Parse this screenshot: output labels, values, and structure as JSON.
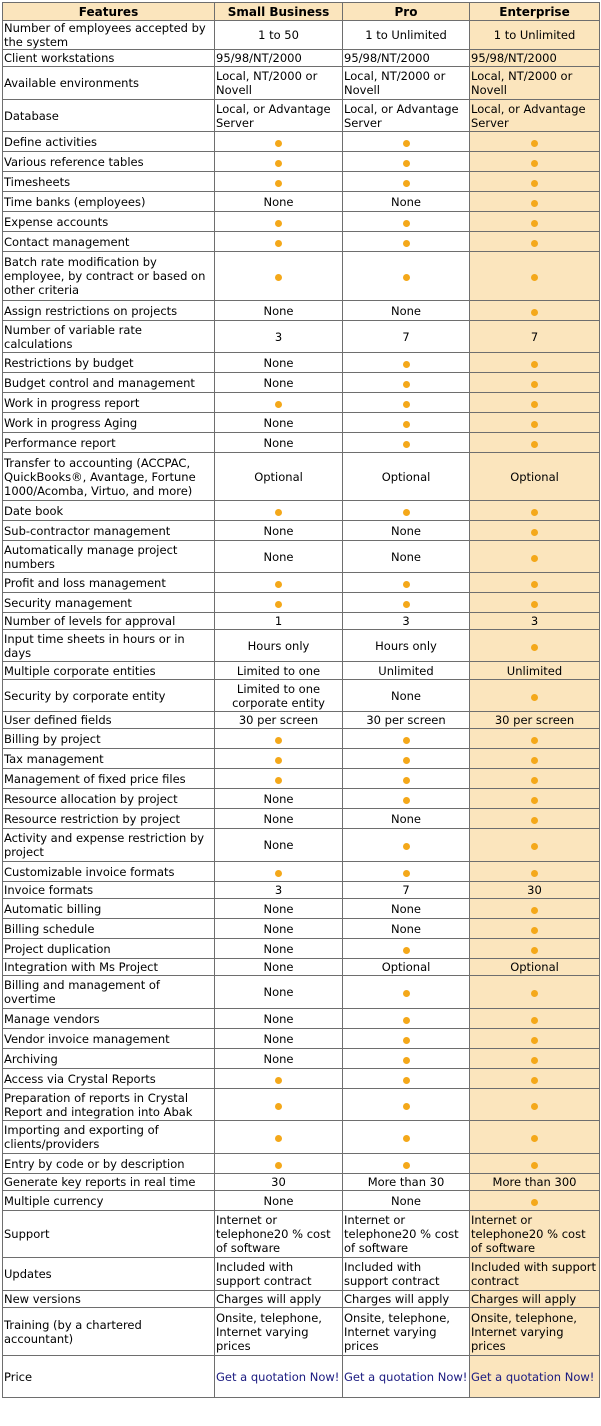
{
  "headers": [
    "Features",
    "Small Business",
    "Pro",
    "Enterprise"
  ],
  "rows": [
    {
      "h": 29,
      "feature": "Number of employees accepted by the system",
      "cells": [
        {
          "t": "text",
          "v": "1 to 50",
          "a": "c"
        },
        {
          "t": "text",
          "v": "1 to Unlimited",
          "a": "c"
        },
        {
          "t": "text",
          "v": "1 to Unlimited",
          "a": "c"
        }
      ]
    },
    {
      "h": 17,
      "feature": "Client workstations",
      "cells": [
        {
          "t": "text",
          "v": "95/98/NT/2000",
          "a": "l"
        },
        {
          "t": "text",
          "v": "95/98/NT/2000",
          "a": "l"
        },
        {
          "t": "text",
          "v": "95/98/NT/2000",
          "a": "l"
        }
      ]
    },
    {
      "h": 33,
      "feature": "Available environments",
      "cells": [
        {
          "t": "text",
          "v": "Local, NT/2000 or Novell",
          "a": "l"
        },
        {
          "t": "text",
          "v": "Local, NT/2000 or Novell",
          "a": "l"
        },
        {
          "t": "text",
          "v": "Local, NT/2000 or Novell",
          "a": "l"
        }
      ]
    },
    {
      "h": 32,
      "feature": "Database",
      "cells": [
        {
          "t": "text",
          "v": "Local, or Advantage Server",
          "a": "l"
        },
        {
          "t": "text",
          "v": "Local, or Advantage Server",
          "a": "l"
        },
        {
          "t": "text",
          "v": "Local, or Advantage Server",
          "a": "l"
        }
      ]
    },
    {
      "h": 20,
      "feature": "Define activities",
      "cells": [
        {
          "t": "dot"
        },
        {
          "t": "dot"
        },
        {
          "t": "dot"
        }
      ]
    },
    {
      "h": 20,
      "feature": "Various reference tables",
      "cells": [
        {
          "t": "dot"
        },
        {
          "t": "dot"
        },
        {
          "t": "dot"
        }
      ]
    },
    {
      "h": 20,
      "feature": "Timesheets",
      "cells": [
        {
          "t": "dot"
        },
        {
          "t": "dot"
        },
        {
          "t": "dot"
        }
      ]
    },
    {
      "h": 20,
      "feature": "Time banks (employees)",
      "cells": [
        {
          "t": "text",
          "v": "None",
          "a": "c"
        },
        {
          "t": "text",
          "v": "None",
          "a": "c"
        },
        {
          "t": "dot"
        }
      ]
    },
    {
      "h": 20,
      "feature": "Expense accounts",
      "cells": [
        {
          "t": "dot"
        },
        {
          "t": "dot"
        },
        {
          "t": "dot"
        }
      ]
    },
    {
      "h": 20,
      "feature": "Contact management",
      "cells": [
        {
          "t": "dot"
        },
        {
          "t": "dot"
        },
        {
          "t": "dot"
        }
      ]
    },
    {
      "h": 49,
      "feature": "Batch rate modification by employee, by contract or based on other criteria",
      "cells": [
        {
          "t": "dot"
        },
        {
          "t": "dot"
        },
        {
          "t": "dot"
        }
      ]
    },
    {
      "h": 20,
      "feature": "Assign restrictions on projects",
      "cells": [
        {
          "t": "text",
          "v": "None",
          "a": "c"
        },
        {
          "t": "text",
          "v": "None",
          "a": "c"
        },
        {
          "t": "dot"
        }
      ]
    },
    {
      "h": 32,
      "feature": "Number of variable rate calculations",
      "cells": [
        {
          "t": "text",
          "v": "3",
          "a": "c"
        },
        {
          "t": "text",
          "v": "7",
          "a": "c"
        },
        {
          "t": "text",
          "v": "7",
          "a": "c"
        }
      ]
    },
    {
      "h": 20,
      "feature": "Restrictions by budget",
      "cells": [
        {
          "t": "text",
          "v": "None",
          "a": "c"
        },
        {
          "t": "dot"
        },
        {
          "t": "dot"
        }
      ]
    },
    {
      "h": 20,
      "feature": "Budget control and management",
      "cells": [
        {
          "t": "text",
          "v": "None",
          "a": "c"
        },
        {
          "t": "dot"
        },
        {
          "t": "dot"
        }
      ]
    },
    {
      "h": 20,
      "feature": "Work in progress report",
      "cells": [
        {
          "t": "dot"
        },
        {
          "t": "dot"
        },
        {
          "t": "dot"
        }
      ]
    },
    {
      "h": 20,
      "feature": "Work in progress Aging",
      "cells": [
        {
          "t": "text",
          "v": "None",
          "a": "c"
        },
        {
          "t": "dot"
        },
        {
          "t": "dot"
        }
      ]
    },
    {
      "h": 20,
      "feature": "Performance report",
      "cells": [
        {
          "t": "text",
          "v": "None",
          "a": "c"
        },
        {
          "t": "dot"
        },
        {
          "t": "dot"
        }
      ]
    },
    {
      "h": 48,
      "feature": "Transfer to accounting (ACCPAC, QuickBooks®, Avantage, Fortune 1000/Acomba, Virtuo, and more)",
      "cells": [
        {
          "t": "text",
          "v": "Optional",
          "a": "c"
        },
        {
          "t": "text",
          "v": "Optional",
          "a": "c"
        },
        {
          "t": "text",
          "v": "Optional",
          "a": "c"
        }
      ]
    },
    {
      "h": 20,
      "feature": "Date book",
      "cells": [
        {
          "t": "dot"
        },
        {
          "t": "dot"
        },
        {
          "t": "dot"
        }
      ]
    },
    {
      "h": 20,
      "feature": "Sub-contractor management",
      "cells": [
        {
          "t": "text",
          "v": "None",
          "a": "c"
        },
        {
          "t": "text",
          "v": "None",
          "a": "c"
        },
        {
          "t": "dot"
        }
      ]
    },
    {
      "h": 32,
      "feature": "Automatically manage project numbers",
      "cells": [
        {
          "t": "text",
          "v": "None",
          "a": "c"
        },
        {
          "t": "text",
          "v": "None",
          "a": "c"
        },
        {
          "t": "dot"
        }
      ]
    },
    {
      "h": 20,
      "feature": "Profit and loss management",
      "cells": [
        {
          "t": "dot"
        },
        {
          "t": "dot"
        },
        {
          "t": "dot"
        }
      ]
    },
    {
      "h": 20,
      "feature": "Security management",
      "cells": [
        {
          "t": "dot"
        },
        {
          "t": "dot"
        },
        {
          "t": "dot"
        }
      ]
    },
    {
      "h": 17,
      "feature": "Number of levels for approval",
      "cells": [
        {
          "t": "text",
          "v": "1",
          "a": "c"
        },
        {
          "t": "text",
          "v": "3",
          "a": "c"
        },
        {
          "t": "text",
          "v": "3",
          "a": "c"
        }
      ]
    },
    {
      "h": 32,
      "feature": "Input time sheets in hours or in days",
      "cells": [
        {
          "t": "text",
          "v": "Hours only",
          "a": "c"
        },
        {
          "t": "text",
          "v": "Hours only",
          "a": "c"
        },
        {
          "t": "dot"
        }
      ]
    },
    {
      "h": 18,
      "feature": "Multiple corporate entities",
      "cells": [
        {
          "t": "text",
          "v": "Limited to one",
          "a": "c"
        },
        {
          "t": "text",
          "v": "Unlimited",
          "a": "c"
        },
        {
          "t": "text",
          "v": "Unlimited",
          "a": "c"
        }
      ]
    },
    {
      "h": 32,
      "feature": "Security by corporate entity",
      "cells": [
        {
          "t": "text",
          "v": "Limited to one corporate entity",
          "a": "c"
        },
        {
          "t": "text",
          "v": "None",
          "a": "c"
        },
        {
          "t": "dot"
        }
      ]
    },
    {
      "h": 17,
      "feature": "User defined fields",
      "cells": [
        {
          "t": "text",
          "v": "30 per screen",
          "a": "c"
        },
        {
          "t": "text",
          "v": "30 per screen",
          "a": "c"
        },
        {
          "t": "text",
          "v": "30 per screen",
          "a": "c"
        }
      ]
    },
    {
      "h": 20,
      "feature": "Billing by project",
      "cells": [
        {
          "t": "dot"
        },
        {
          "t": "dot"
        },
        {
          "t": "dot"
        }
      ]
    },
    {
      "h": 20,
      "feature": "Tax management",
      "cells": [
        {
          "t": "dot"
        },
        {
          "t": "dot"
        },
        {
          "t": "dot"
        }
      ]
    },
    {
      "h": 20,
      "feature": "Management of fixed price files",
      "cells": [
        {
          "t": "dot"
        },
        {
          "t": "dot"
        },
        {
          "t": "dot"
        }
      ]
    },
    {
      "h": 20,
      "feature": "Resource allocation by project",
      "cells": [
        {
          "t": "text",
          "v": "None",
          "a": "c"
        },
        {
          "t": "dot"
        },
        {
          "t": "dot"
        }
      ]
    },
    {
      "h": 20,
      "feature": "Resource restriction by project",
      "cells": [
        {
          "t": "text",
          "v": "None",
          "a": "c"
        },
        {
          "t": "text",
          "v": "None",
          "a": "c"
        },
        {
          "t": "dot"
        }
      ]
    },
    {
      "h": 33,
      "feature": "Activity and expense restriction by project",
      "cells": [
        {
          "t": "text",
          "v": "None",
          "a": "c"
        },
        {
          "t": "dot"
        },
        {
          "t": "dot"
        }
      ]
    },
    {
      "h": 20,
      "feature": "Customizable invoice formats",
      "cells": [
        {
          "t": "dot"
        },
        {
          "t": "dot"
        },
        {
          "t": "dot"
        }
      ]
    },
    {
      "h": 17,
      "feature": "Invoice formats",
      "cells": [
        {
          "t": "text",
          "v": "3",
          "a": "c"
        },
        {
          "t": "text",
          "v": "7",
          "a": "c"
        },
        {
          "t": "text",
          "v": "30",
          "a": "c"
        }
      ]
    },
    {
      "h": 20,
      "feature": "Automatic billing",
      "cells": [
        {
          "t": "text",
          "v": "None",
          "a": "c"
        },
        {
          "t": "text",
          "v": "None",
          "a": "c"
        },
        {
          "t": "dot"
        }
      ]
    },
    {
      "h": 20,
      "feature": "Billing schedule",
      "cells": [
        {
          "t": "text",
          "v": "None",
          "a": "c"
        },
        {
          "t": "text",
          "v": "None",
          "a": "c"
        },
        {
          "t": "dot"
        }
      ]
    },
    {
      "h": 20,
      "feature": "Project duplication",
      "cells": [
        {
          "t": "text",
          "v": "None",
          "a": "c"
        },
        {
          "t": "dot"
        },
        {
          "t": "dot"
        }
      ]
    },
    {
      "h": 17,
      "feature": "Integration with Ms Project",
      "cells": [
        {
          "t": "text",
          "v": "None",
          "a": "c"
        },
        {
          "t": "text",
          "v": "Optional",
          "a": "c"
        },
        {
          "t": "text",
          "v": "Optional",
          "a": "c"
        }
      ]
    },
    {
      "h": 33,
      "feature": "Billing and management of overtime",
      "cells": [
        {
          "t": "text",
          "v": "None",
          "a": "c"
        },
        {
          "t": "dot"
        },
        {
          "t": "dot"
        }
      ]
    },
    {
      "h": 20,
      "feature": "Manage vendors",
      "cells": [
        {
          "t": "text",
          "v": "None",
          "a": "c"
        },
        {
          "t": "dot"
        },
        {
          "t": "dot"
        }
      ]
    },
    {
      "h": 20,
      "feature": "Vendor invoice management",
      "cells": [
        {
          "t": "text",
          "v": "None",
          "a": "c"
        },
        {
          "t": "dot"
        },
        {
          "t": "dot"
        }
      ]
    },
    {
      "h": 20,
      "feature": "Archiving",
      "cells": [
        {
          "t": "text",
          "v": "None",
          "a": "c"
        },
        {
          "t": "dot"
        },
        {
          "t": "dot"
        }
      ]
    },
    {
      "h": 20,
      "feature": "Access via Crystal Reports",
      "cells": [
        {
          "t": "dot"
        },
        {
          "t": "dot"
        },
        {
          "t": "dot"
        }
      ]
    },
    {
      "h": 32,
      "feature": "Preparation of reports in Crystal Report and integration into Abak",
      "cells": [
        {
          "t": "dot"
        },
        {
          "t": "dot"
        },
        {
          "t": "dot"
        }
      ]
    },
    {
      "h": 33,
      "feature": "Importing and exporting of clients/providers",
      "cells": [
        {
          "t": "dot"
        },
        {
          "t": "dot"
        },
        {
          "t": "dot"
        }
      ]
    },
    {
      "h": 20,
      "feature": "Entry by code or by description",
      "cells": [
        {
          "t": "dot"
        },
        {
          "t": "dot"
        },
        {
          "t": "dot"
        }
      ]
    },
    {
      "h": 17,
      "feature": "Generate key reports in real time",
      "cells": [
        {
          "t": "text",
          "v": "30",
          "a": "c"
        },
        {
          "t": "text",
          "v": "More than 30",
          "a": "c"
        },
        {
          "t": "text",
          "v": "More than 300",
          "a": "c"
        }
      ]
    },
    {
      "h": 20,
      "feature": "Multiple currency",
      "cells": [
        {
          "t": "text",
          "v": "None",
          "a": "c"
        },
        {
          "t": "text",
          "v": "None",
          "a": "c"
        },
        {
          "t": "dot"
        }
      ]
    },
    {
      "h": 47,
      "feature": "Support",
      "cells": [
        {
          "t": "text",
          "v": "Internet or telephone20 % cost of software",
          "a": "l"
        },
        {
          "t": "text",
          "v": "Internet or telephone20 % cost of software",
          "a": "l"
        },
        {
          "t": "text",
          "v": "Internet or telephone20 % cost of software",
          "a": "l"
        }
      ]
    },
    {
      "h": 33,
      "feature": "Updates",
      "cells": [
        {
          "t": "text",
          "v": "Included with support contract",
          "a": "l"
        },
        {
          "t": "text",
          "v": "Included with support contract",
          "a": "l"
        },
        {
          "t": "text",
          "v": "Included with support contract",
          "a": "l"
        }
      ]
    },
    {
      "h": 17,
      "feature": "New versions",
      "cells": [
        {
          "t": "text",
          "v": "Charges will apply",
          "a": "l"
        },
        {
          "t": "text",
          "v": "Charges will apply",
          "a": "l"
        },
        {
          "t": "text",
          "v": "Charges will apply",
          "a": "l"
        }
      ]
    },
    {
      "h": 48,
      "feature": "Training (by a chartered accountant)",
      "cells": [
        {
          "t": "text",
          "v": "Onsite, telephone, Internet varying prices",
          "a": "l"
        },
        {
          "t": "text",
          "v": "Onsite, telephone, Internet varying prices",
          "a": "l"
        },
        {
          "t": "text",
          "v": "Onsite, telephone, Internet varying prices",
          "a": "l"
        }
      ]
    },
    {
      "h": 42,
      "feature": "Price",
      "cells": [
        {
          "t": "link",
          "v": "Get a quotation Now!",
          "a": "l"
        },
        {
          "t": "link",
          "v": "Get a quotation Now!",
          "a": "l"
        },
        {
          "t": "link",
          "v": "Get a quotation Now!",
          "a": "l"
        }
      ]
    }
  ],
  "colors": {
    "enterprise_bg": "#fbe5bd",
    "dot": "#f4a81a",
    "border": "#6e6e6e"
  }
}
